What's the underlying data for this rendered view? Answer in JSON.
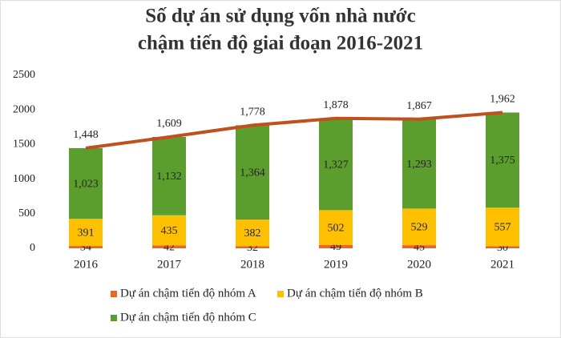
{
  "chart_data": {
    "type": "bar",
    "stacked": true,
    "title": [
      "Số dự án sử dụng vốn nhà nước",
      "chậm tiến độ giai đoạn 2016-2021"
    ],
    "categories": [
      "2016",
      "2017",
      "2018",
      "2019",
      "2020",
      "2021"
    ],
    "series": [
      {
        "name": "Dự án chậm tiến độ nhóm A",
        "color": "#f0641e",
        "values": [
          34,
          42,
          32,
          49,
          45,
          30
        ]
      },
      {
        "name": "Dự án chậm tiến độ nhóm B",
        "color": "#ffc000",
        "values": [
          391,
          435,
          382,
          502,
          529,
          557
        ]
      },
      {
        "name": "Dự án chậm tiến độ nhóm C",
        "color": "#5b9e2d",
        "values": [
          1023,
          1132,
          1364,
          1327,
          1293,
          1375
        ],
        "value_labels": [
          "1,023",
          "1,132",
          "1,364",
          "1,327",
          "1,293",
          "1,375"
        ]
      }
    ],
    "line": {
      "color": "#c0501e",
      "values": [
        1448,
        1609,
        1778,
        1878,
        1867,
        1962
      ],
      "value_labels": [
        "1,448",
        "1,609",
        "1,778",
        "1,878",
        "1,867",
        "1,962"
      ]
    },
    "ylim": [
      0,
      2500
    ],
    "yticks": [
      0,
      500,
      1000,
      1500,
      2000,
      2500
    ],
    "grid": false,
    "legend": "bottom"
  }
}
